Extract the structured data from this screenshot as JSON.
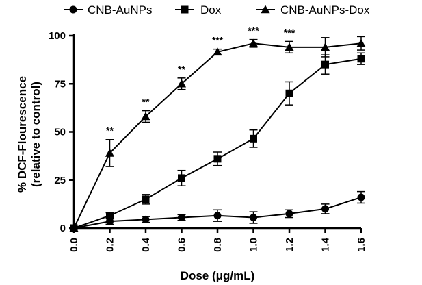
{
  "chart_data": {
    "type": "line",
    "title": "",
    "xlabel": "Dose (μg/mL)",
    "ylabel_line1": "% DCF-Flourescence",
    "ylabel_line2": "(relative to control)",
    "xlim": [
      0,
      1.6
    ],
    "ylim": [
      0,
      100
    ],
    "x": [
      0.0,
      0.2,
      0.4,
      0.6,
      0.8,
      1.0,
      1.2,
      1.4,
      1.6
    ],
    "x_tick_labels": [
      "0.0",
      "0.2",
      "0.4",
      "0.6",
      "0.8",
      "1.0",
      "1.2",
      "1.4",
      "1.6"
    ],
    "y_ticks": [
      0,
      25,
      50,
      75,
      100
    ],
    "y_tick_labels": [
      "0",
      "25",
      "50",
      "75",
      "100"
    ],
    "legend_position": "top",
    "series": [
      {
        "name": "CNB-AuNPs",
        "marker": "circle",
        "values": [
          0,
          3.5,
          4.5,
          5.5,
          6.5,
          5.5,
          7.5,
          10,
          16
        ],
        "errors": [
          0,
          1.5,
          1.5,
          1.5,
          3,
          3,
          2,
          2.5,
          3
        ]
      },
      {
        "name": "Dox",
        "marker": "square",
        "values": [
          0,
          6.5,
          15,
          26,
          36,
          46.5,
          70,
          85,
          88
        ],
        "errors": [
          0,
          1.5,
          2.5,
          4,
          3.5,
          4.5,
          6,
          5,
          3
        ]
      },
      {
        "name": "CNB-AuNPs-Dox",
        "marker": "triangle",
        "values": [
          0,
          39,
          58,
          75,
          91.5,
          96,
          94,
          94,
          96
        ],
        "errors": [
          0,
          7,
          3,
          3,
          1.5,
          2,
          3,
          5,
          3.5
        ]
      }
    ],
    "annotations": [
      {
        "x": 0.2,
        "text": "**"
      },
      {
        "x": 0.4,
        "text": "**"
      },
      {
        "x": 0.6,
        "text": "**"
      },
      {
        "x": 0.8,
        "text": "***"
      },
      {
        "x": 1.0,
        "text": "***"
      },
      {
        "x": 1.2,
        "text": "***"
      }
    ]
  }
}
